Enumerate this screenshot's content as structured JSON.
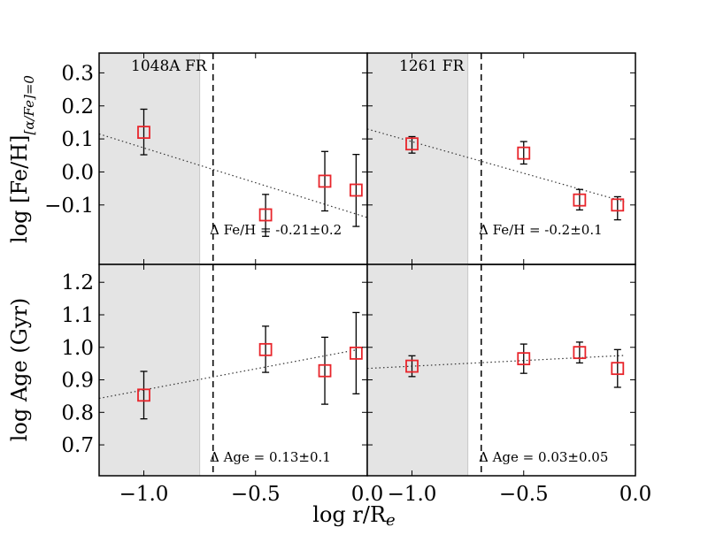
{
  "figure": {
    "xlabel": "log r/Re",
    "xlabel_main": "log r/R",
    "xlabel_sub": "e"
  },
  "colors": {
    "marker": "#e8252b",
    "errorbar": "#000000",
    "shade": "#e4e4e4",
    "shade_edge": "#c8c8c8",
    "fit_line": "#333333"
  },
  "chart_data": [
    {
      "id": "fe_1048A",
      "type": "scatter",
      "label": "1048A FR",
      "ylabel": "log [Fe/H][α/Fe]=0",
      "xlim": [
        -1.2,
        0.0
      ],
      "ylim": [
        -0.28,
        0.36
      ],
      "xticks": [
        -1.0,
        -0.5
      ],
      "xtick_labels": [
        "",
        ""
      ],
      "yticks": [
        0.3,
        0.2,
        0.1,
        0.0,
        -0.1
      ],
      "ytick_labels": [
        "0.3",
        "0.2",
        "0.1",
        "0.0",
        "−0.1"
      ],
      "shaded_x": [
        -1.2,
        -0.75
      ],
      "vline_x": -0.69,
      "fit": {
        "x": [
          -1.2,
          0.0
        ],
        "y": [
          0.115,
          -0.138
        ]
      },
      "points": [
        {
          "x": -1.0,
          "y": 0.12,
          "yerr": [
            0.068,
            0.07
          ]
        },
        {
          "x": -0.455,
          "y": -0.13,
          "yerr": [
            0.065,
            0.062
          ]
        },
        {
          "x": -0.19,
          "y": -0.028,
          "yerr": [
            0.09,
            0.09
          ]
        },
        {
          "x": -0.05,
          "y": -0.055,
          "yerr": [
            0.11,
            0.108
          ]
        }
      ],
      "annotation": "Δ Fe/H = -0.21±0.2"
    },
    {
      "id": "fe_1261",
      "type": "scatter",
      "label": "1261 FR",
      "ylabel": "",
      "xlim": [
        -1.2,
        0.0
      ],
      "ylim": [
        -0.28,
        0.36
      ],
      "xticks": [
        -1.0,
        -0.5
      ],
      "xtick_labels": [
        "",
        ""
      ],
      "yticks": [
        0.3,
        0.2,
        0.1,
        0.0,
        -0.1
      ],
      "ytick_labels": [
        "",
        "",
        "",
        "",
        ""
      ],
      "shaded_x": [
        -1.2,
        -0.75
      ],
      "vline_x": -0.69,
      "fit": {
        "x": [
          -1.2,
          -0.05
        ],
        "y": [
          0.13,
          -0.09
        ]
      },
      "points": [
        {
          "x": -1.0,
          "y": 0.085,
          "yerr": [
            0.028,
            0.022
          ]
        },
        {
          "x": -0.5,
          "y": 0.057,
          "yerr": [
            0.033,
            0.035
          ]
        },
        {
          "x": -0.25,
          "y": -0.085,
          "yerr": [
            0.03,
            0.032
          ]
        },
        {
          "x": -0.08,
          "y": -0.1,
          "yerr": [
            0.045,
            0.025
          ]
        }
      ],
      "annotation": "Δ Fe/H = -0.2±0.1"
    },
    {
      "id": "age_1048A",
      "type": "scatter",
      "label": "",
      "ylabel": "log Age (Gyr)",
      "xlim": [
        -1.2,
        0.0
      ],
      "ylim": [
        0.605,
        1.255
      ],
      "xticks": [
        -1.0,
        -0.5,
        0.0
      ],
      "xtick_labels": [
        "−1.0",
        "−0.5",
        "0.0"
      ],
      "yticks": [
        1.2,
        1.1,
        1.0,
        0.9,
        0.8,
        0.7
      ],
      "ytick_labels": [
        "1.2",
        "1.1",
        "1.0",
        "0.9",
        "0.8",
        "0.7"
      ],
      "shaded_x": [
        -1.2,
        -0.75
      ],
      "vline_x": -0.69,
      "fit": {
        "x": [
          -1.2,
          -0.05
        ],
        "y": [
          0.843,
          0.992
        ]
      },
      "points": [
        {
          "x": -1.0,
          "y": 0.853,
          "yerr": [
            0.073,
            0.073
          ]
        },
        {
          "x": -0.455,
          "y": 0.993,
          "yerr": [
            0.07,
            0.072
          ]
        },
        {
          "x": -0.19,
          "y": 0.928,
          "yerr": [
            0.103,
            0.103
          ]
        },
        {
          "x": -0.05,
          "y": 0.982,
          "yerr": [
            0.125,
            0.125
          ]
        }
      ],
      "annotation": "Δ Age = 0.13±0.1"
    },
    {
      "id": "age_1261",
      "type": "scatter",
      "label": "",
      "ylabel": "",
      "xlim": [
        -1.2,
        0.0
      ],
      "ylim": [
        0.605,
        1.255
      ],
      "xticks": [
        -1.0,
        -0.5,
        0.0
      ],
      "xtick_labels": [
        "−1.0",
        "−0.5",
        "0.0"
      ],
      "yticks": [
        1.2,
        1.1,
        1.0,
        0.9,
        0.8,
        0.7
      ],
      "ytick_labels": [
        "",
        "",
        "",
        "",
        "",
        ""
      ],
      "shaded_x": [
        -1.2,
        -0.75
      ],
      "vline_x": -0.69,
      "fit": {
        "x": [
          -1.2,
          -0.05
        ],
        "y": [
          0.935,
          0.975
        ]
      },
      "points": [
        {
          "x": -1.0,
          "y": 0.942,
          "yerr": [
            0.032,
            0.032
          ]
        },
        {
          "x": -0.5,
          "y": 0.965,
          "yerr": [
            0.045,
            0.045
          ]
        },
        {
          "x": -0.25,
          "y": 0.984,
          "yerr": [
            0.032,
            0.032
          ]
        },
        {
          "x": -0.08,
          "y": 0.935,
          "yerr": [
            0.058,
            0.058
          ]
        }
      ],
      "annotation": "Δ Age = 0.03±0.05"
    }
  ]
}
